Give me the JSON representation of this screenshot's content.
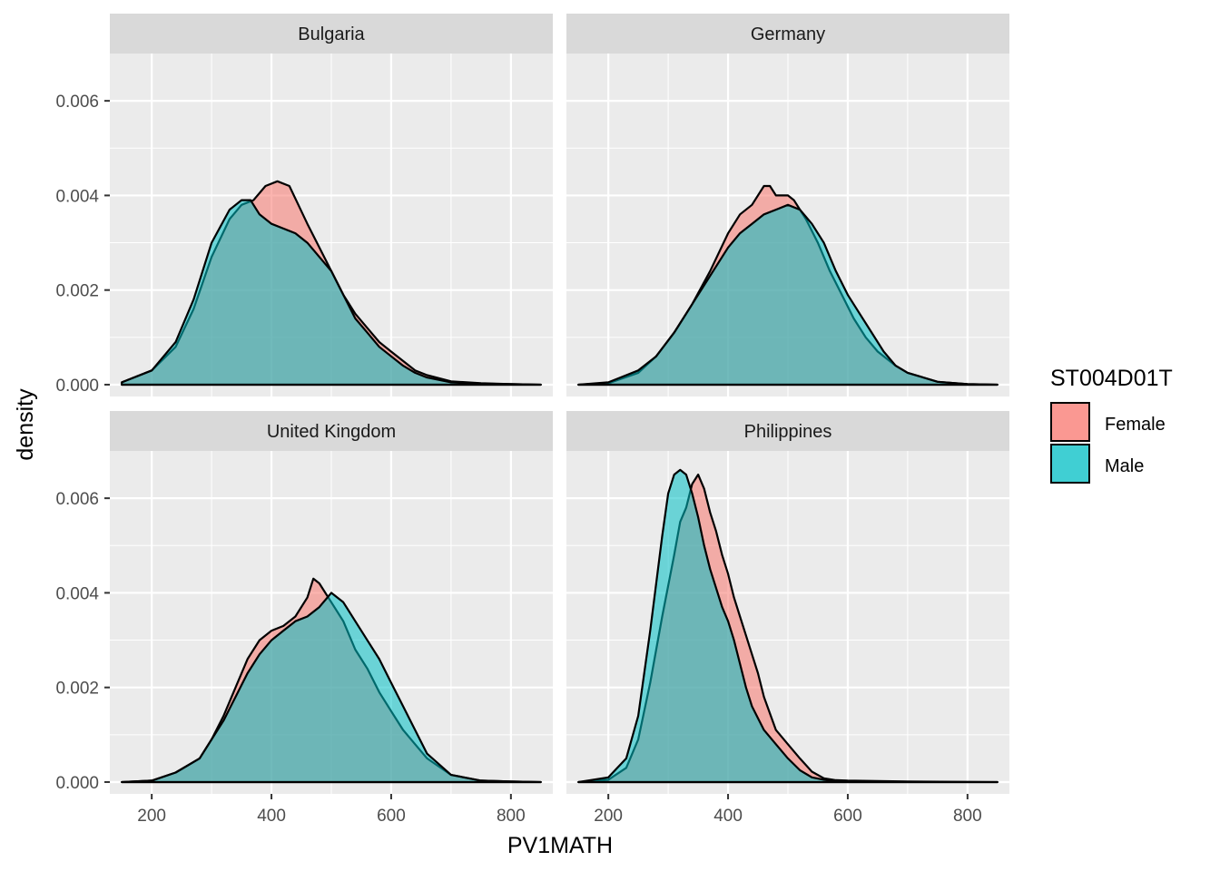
{
  "chart_data": {
    "type": "area",
    "subtype": "density-facet",
    "xlabel": "PV1MATH",
    "ylabel": "density",
    "xlim": [
      130,
      870
    ],
    "ylim": [
      -0.00025,
      0.007
    ],
    "x_ticks": [
      200,
      400,
      600,
      800
    ],
    "x_tick_labels": [
      "200",
      "400",
      "600",
      "800"
    ],
    "y_ticks": [
      0,
      0.002,
      0.004,
      0.006
    ],
    "y_tick_labels": [
      "0.000",
      "0.002",
      "0.004",
      "0.006"
    ],
    "grid": true,
    "legend": {
      "title": "ST004D01T",
      "placement": "right",
      "items": [
        {
          "name": "Female",
          "color": "#F8766D"
        },
        {
          "name": "Male",
          "color": "#00BFC4"
        }
      ]
    },
    "panels": [
      {
        "strip": "Bulgaria",
        "series": [
          {
            "name": "Female",
            "color": "#F8766D",
            "x": [
              150,
              200,
              240,
              270,
              300,
              330,
              350,
              370,
              390,
              410,
              430,
              445,
              460,
              480,
              500,
              520,
              540,
              560,
              580,
              600,
              620,
              640,
              660,
              700,
              750,
              800,
              850
            ],
            "y": [
              5e-05,
              0.0003,
              0.0008,
              0.0016,
              0.0027,
              0.0035,
              0.0038,
              0.0039,
              0.0042,
              0.0043,
              0.0042,
              0.0038,
              0.0034,
              0.0029,
              0.0024,
              0.0019,
              0.0015,
              0.0012,
              0.0009,
              0.0007,
              0.0005,
              0.0003,
              0.0002,
              7e-05,
              3e-05,
              1e-05,
              0.0
            ]
          },
          {
            "name": "Male",
            "color": "#00BFC4",
            "x": [
              150,
              200,
              240,
              270,
              300,
              330,
              350,
              365,
              380,
              400,
              420,
              440,
              460,
              480,
              500,
              520,
              540,
              560,
              580,
              600,
              620,
              640,
              660,
              700,
              750,
              800,
              850
            ],
            "y": [
              5e-05,
              0.0003,
              0.0009,
              0.0018,
              0.003,
              0.0037,
              0.0039,
              0.0039,
              0.0036,
              0.0034,
              0.0033,
              0.0032,
              0.003,
              0.0027,
              0.0024,
              0.0019,
              0.0014,
              0.0011,
              0.0008,
              0.0006,
              0.0004,
              0.00025,
              0.00015,
              5e-05,
              2e-05,
              1e-05,
              0.0
            ]
          }
        ]
      },
      {
        "strip": "Germany",
        "series": [
          {
            "name": "Female",
            "color": "#F8766D",
            "x": [
              150,
              200,
              250,
              280,
              310,
              340,
              370,
              400,
              420,
              440,
              460,
              470,
              480,
              500,
              510,
              530,
              550,
              570,
              590,
              610,
              630,
              650,
              680,
              700,
              750,
              800,
              850
            ],
            "y": [
              0.0,
              3e-05,
              0.00025,
              0.0006,
              0.0011,
              0.0017,
              0.0024,
              0.0032,
              0.0036,
              0.0038,
              0.0042,
              0.0042,
              0.004,
              0.004,
              0.0039,
              0.0035,
              0.003,
              0.0024,
              0.0019,
              0.0014,
              0.001,
              0.0007,
              0.0004,
              0.00025,
              6e-05,
              1e-05,
              0.0
            ]
          },
          {
            "name": "Male",
            "color": "#00BFC4",
            "x": [
              150,
              200,
              250,
              280,
              310,
              340,
              370,
              400,
              420,
              440,
              460,
              480,
              500,
              520,
              540,
              560,
              580,
              600,
              620,
              640,
              660,
              680,
              700,
              750,
              800,
              850
            ],
            "y": [
              0.0,
              5e-05,
              0.0003,
              0.0006,
              0.0011,
              0.0017,
              0.0023,
              0.0029,
              0.0032,
              0.0034,
              0.0036,
              0.0037,
              0.0038,
              0.0037,
              0.0034,
              0.003,
              0.0024,
              0.0019,
              0.0015,
              0.0011,
              0.0007,
              0.0004,
              0.00025,
              6e-05,
              1e-05,
              0.0
            ]
          }
        ]
      },
      {
        "strip": "United Kingdom",
        "series": [
          {
            "name": "Female",
            "color": "#F8766D",
            "x": [
              150,
              200,
              240,
              280,
              300,
              320,
              340,
              360,
              380,
              400,
              420,
              440,
              460,
              470,
              480,
              500,
              520,
              540,
              560,
              580,
              600,
              620,
              640,
              660,
              700,
              750,
              800,
              850
            ],
            "y": [
              0.0,
              3e-05,
              0.0002,
              0.0005,
              0.0009,
              0.0014,
              0.002,
              0.0026,
              0.003,
              0.0032,
              0.0033,
              0.0035,
              0.0039,
              0.0043,
              0.0042,
              0.0038,
              0.0034,
              0.0028,
              0.0024,
              0.0019,
              0.0015,
              0.0011,
              0.0008,
              0.0005,
              0.00015,
              3e-05,
              1e-05,
              0.0
            ]
          },
          {
            "name": "Male",
            "color": "#00BFC4",
            "x": [
              150,
              200,
              240,
              280,
              300,
              320,
              340,
              360,
              380,
              400,
              420,
              440,
              460,
              480,
              500,
              520,
              540,
              560,
              580,
              600,
              620,
              640,
              660,
              700,
              750,
              800,
              850
            ],
            "y": [
              0.0,
              3e-05,
              0.0002,
              0.0005,
              0.0009,
              0.0013,
              0.0018,
              0.0023,
              0.0027,
              0.003,
              0.0032,
              0.0034,
              0.0035,
              0.0037,
              0.004,
              0.0038,
              0.0034,
              0.003,
              0.0026,
              0.0021,
              0.0016,
              0.0011,
              0.0006,
              0.00015,
              3e-05,
              1e-05,
              0.0
            ]
          }
        ]
      },
      {
        "strip": "Philippines",
        "series": [
          {
            "name": "Female",
            "color": "#F8766D",
            "x": [
              150,
              200,
              230,
              250,
              270,
              290,
              310,
              320,
              330,
              340,
              350,
              360,
              370,
              380,
              390,
              400,
              410,
              420,
              430,
              440,
              450,
              460,
              480,
              500,
              520,
              540,
              560,
              580,
              600,
              650,
              700,
              850
            ],
            "y": [
              0.0,
              5e-05,
              0.0003,
              0.0009,
              0.0021,
              0.0035,
              0.0048,
              0.0055,
              0.0058,
              0.0063,
              0.0065,
              0.0062,
              0.0057,
              0.0053,
              0.0048,
              0.0044,
              0.0039,
              0.0035,
              0.0031,
              0.0027,
              0.0023,
              0.0018,
              0.0011,
              0.0008,
              0.0005,
              0.00022,
              8e-05,
              4e-05,
              3e-05,
              2e-05,
              1e-05,
              0.0
            ]
          },
          {
            "name": "Male",
            "color": "#00BFC4",
            "x": [
              150,
              200,
              230,
              250,
              270,
              290,
              300,
              310,
              320,
              330,
              340,
              350,
              360,
              370,
              380,
              390,
              400,
              410,
              420,
              430,
              440,
              460,
              480,
              500,
              520,
              540,
              560,
              580,
              600,
              650,
              700,
              850
            ],
            "y": [
              0.0,
              0.0001,
              0.0005,
              0.0014,
              0.0032,
              0.0052,
              0.0061,
              0.0065,
              0.0066,
              0.0065,
              0.0061,
              0.0056,
              0.005,
              0.0045,
              0.0041,
              0.0037,
              0.0034,
              0.003,
              0.0025,
              0.002,
              0.0016,
              0.0011,
              0.0008,
              0.0005,
              0.00025,
              0.0001,
              5e-05,
              2e-05,
              1e-05,
              0.0,
              0.0,
              0.0
            ]
          }
        ]
      }
    ]
  }
}
